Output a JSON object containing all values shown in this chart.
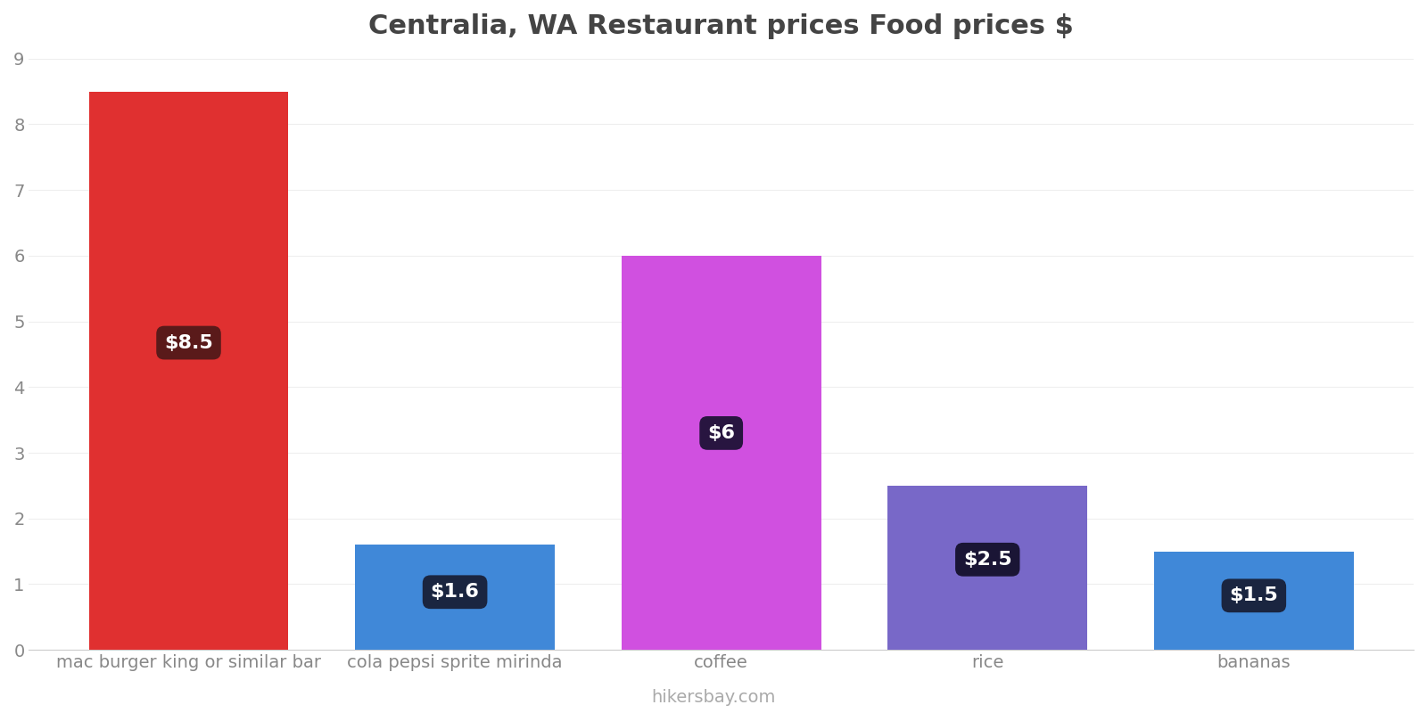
{
  "title": "Centralia, WA Restaurant prices Food prices $",
  "categories": [
    "mac burger king or similar bar",
    "cola pepsi sprite mirinda",
    "coffee",
    "rice",
    "bananas"
  ],
  "values": [
    8.5,
    1.6,
    6.0,
    2.5,
    1.5
  ],
  "bar_colors": [
    "#e03030",
    "#4088d8",
    "#d050e0",
    "#7868c8",
    "#4088d8"
  ],
  "label_texts": [
    "$8.5",
    "$1.6",
    "$6",
    "$2.5",
    "$1.5"
  ],
  "label_bg_colors": [
    "#5a1a1a",
    "#1a2540",
    "#281540",
    "#1a1535",
    "#1a2540"
  ],
  "ylim": [
    0,
    9
  ],
  "yticks": [
    0,
    1,
    2,
    3,
    4,
    5,
    6,
    7,
    8,
    9
  ],
  "footer": "hikersbay.com",
  "background_color": "#ffffff",
  "title_fontsize": 22,
  "label_fontsize": 16,
  "tick_fontsize": 14,
  "footer_fontsize": 14,
  "footer_color": "#aaaaaa",
  "bar_width": 0.75
}
